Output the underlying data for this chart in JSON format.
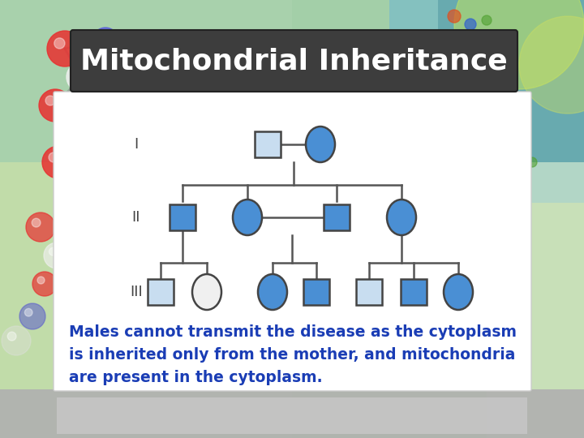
{
  "title": "Mitochondrial Inheritance",
  "title_color": "#ffffff",
  "title_bg_color": "#3d3d3d",
  "line_color": "#555555",
  "blue_fill": "#4a8fd4",
  "light_fill": "#c8ddf0",
  "empty_fill": "#f0f0f0",
  "white_fill": "#ffffff",
  "text_color": "#1a3db5",
  "bottom_text": "Males cannot transmit the disease as the cytoplasm\nis inherited only from the mother, and mitochondria\nare present in the cytoplasm.",
  "generation_labels": [
    "I",
    "II",
    "III"
  ],
  "bg_left_color": "#c8e8b0",
  "bg_right_color": "#b0d8e0",
  "bg_bottom_color": "#c8c8c8"
}
